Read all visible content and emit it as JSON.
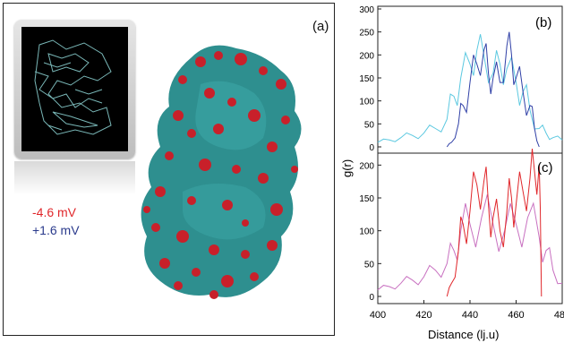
{
  "figure": {
    "panel_a": {
      "label": "(a)",
      "potentials": [
        {
          "text": "-4.6 mV",
          "color": "#e0262a"
        },
        {
          "text": "+1.6  mV",
          "color": "#2a3a8c"
        }
      ],
      "colors": {
        "surface": "#2e8f8f",
        "negative": "#c8202a"
      }
    },
    "panel_b_label": "(b)",
    "panel_c_label": "(c)",
    "ylabel": "g(r)",
    "xlabel": "Distance (lj.u)"
  },
  "chart_data": [
    {
      "type": "line",
      "panel": "(b)",
      "xlim": [
        400,
        480
      ],
      "ylim": [
        0,
        300
      ],
      "yticks": [
        0,
        50,
        100,
        150,
        200,
        250,
        300
      ],
      "series": [
        {
          "color": "#5bc8e0",
          "x": [
            400,
            405,
            410,
            415,
            420,
            425,
            430,
            433,
            436,
            440,
            443,
            446,
            450,
            453,
            456,
            460,
            463,
            466,
            470,
            473,
            476,
            480
          ],
          "values": [
            10,
            15,
            20,
            25,
            30,
            40,
            60,
            110,
            150,
            180,
            210,
            200,
            160,
            180,
            170,
            140,
            120,
            80,
            40,
            30,
            20,
            15
          ]
        },
        {
          "color": "#2f3fa6",
          "x": [
            430,
            432,
            435,
            437,
            440,
            443,
            446,
            448,
            450,
            453,
            456,
            458,
            460,
            463,
            466,
            468,
            470
          ],
          "values": [
            0,
            10,
            50,
            90,
            140,
            180,
            210,
            160,
            150,
            140,
            220,
            200,
            150,
            120,
            90,
            40,
            0
          ]
        }
      ]
    },
    {
      "type": "line",
      "panel": "(c)",
      "xlim": [
        400,
        480
      ],
      "ylim": [
        0,
        210
      ],
      "yticks": [
        0,
        50,
        100,
        150,
        200
      ],
      "xticks": [
        400,
        420,
        440,
        460,
        480
      ],
      "series": [
        {
          "color": "#e0262a",
          "x": [
            430,
            432,
            435,
            437,
            440,
            443,
            446,
            448,
            450,
            453,
            456,
            458,
            460,
            463,
            466,
            468,
            470,
            471
          ],
          "values": [
            0,
            20,
            70,
            110,
            130,
            170,
            175,
            140,
            120,
            100,
            130,
            150,
            140,
            160,
            180,
            190,
            200,
            0
          ]
        },
        {
          "color": "#c870c0",
          "x": [
            400,
            405,
            410,
            415,
            420,
            425,
            430,
            433,
            436,
            440,
            445,
            450,
            455,
            460,
            465,
            470,
            473,
            476,
            480
          ],
          "values": [
            10,
            15,
            20,
            25,
            30,
            40,
            50,
            70,
            100,
            110,
            120,
            110,
            100,
            110,
            120,
            90,
            70,
            40,
            20
          ]
        }
      ]
    }
  ]
}
